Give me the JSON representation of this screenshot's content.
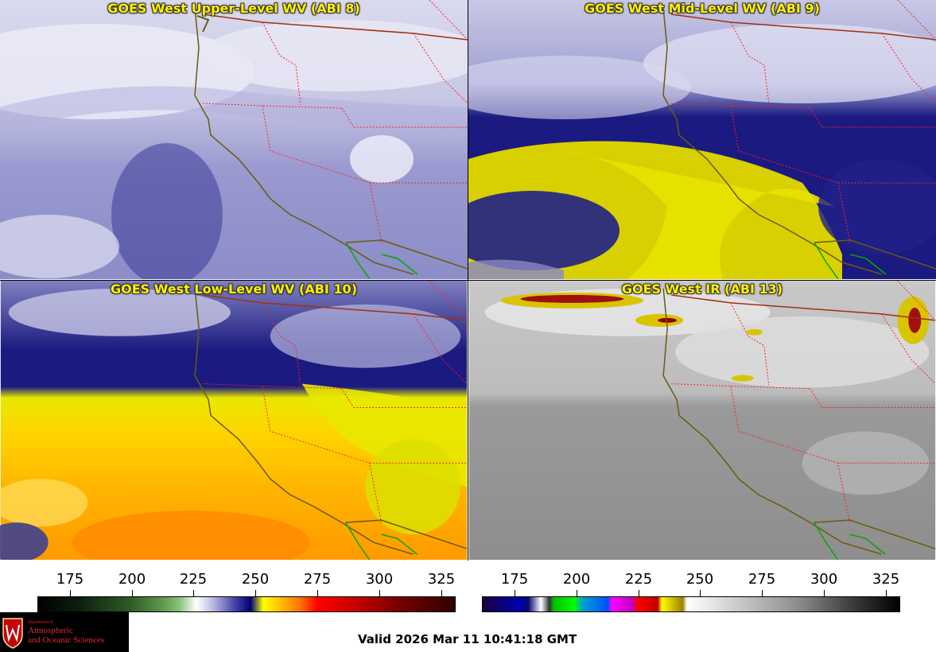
{
  "panels": [
    {
      "title": "GOES West Upper-Level WV (ABI 8)"
    },
    {
      "title": "GOES West Mid-Level WV (ABI 9)"
    },
    {
      "title": "GOES West Low-Level WV (ABI 10)"
    },
    {
      "title": "GOES West IR (ABI 13)"
    }
  ],
  "colorbars": [
    {
      "ticks": [
        "175",
        "200",
        "225",
        "250",
        "275",
        "300",
        "325"
      ]
    },
    {
      "ticks": [
        "175",
        "200",
        "225",
        "250",
        "275",
        "300",
        "325"
      ]
    }
  ],
  "logo": {
    "dept": "Department of",
    "line1": "Atmospheric",
    "line2": "and Oceanic Sciences"
  },
  "valid_time": "Valid 2026 Mar 11 10:41:18 GMT",
  "colors": {
    "title_text": "#ffef00",
    "state_border": "#ff2020",
    "coastline": "#6b5a10",
    "mexico_border": "#00aa00"
  }
}
